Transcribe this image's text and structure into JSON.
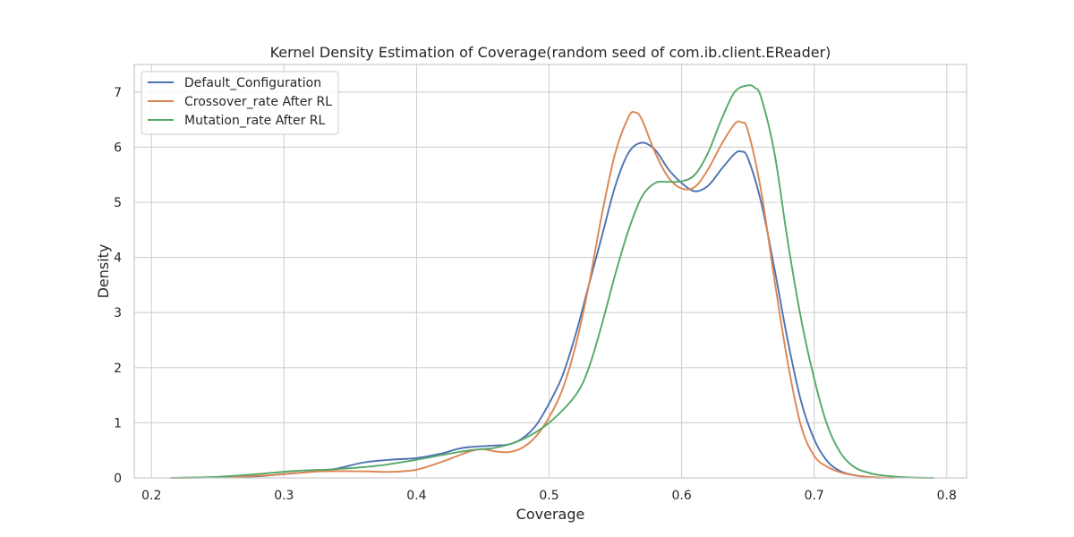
{
  "chart_data": {
    "type": "line",
    "title": "Kernel Density Estimation of Coverage(random seed of com.ib.client.EReader)",
    "xlabel": "Coverage",
    "ylabel": "Density",
    "xlim": [
      0.187,
      0.815
    ],
    "ylim": [
      0,
      7.5
    ],
    "xticks": [
      0.2,
      0.3,
      0.4,
      0.5,
      0.6,
      0.7,
      0.8
    ],
    "xtick_labels": [
      "0.2",
      "0.3",
      "0.4",
      "0.5",
      "0.6",
      "0.7",
      "0.8"
    ],
    "yticks": [
      0,
      1,
      2,
      3,
      4,
      5,
      6,
      7
    ],
    "ytick_labels": [
      "0",
      "1",
      "2",
      "3",
      "4",
      "5",
      "6",
      "7"
    ],
    "grid": true,
    "legend": "top-left",
    "series": [
      {
        "name": "Default_Configuration",
        "color": "#4c72b0",
        "x": [
          0.215,
          0.25,
          0.28,
          0.3,
          0.32,
          0.34,
          0.36,
          0.38,
          0.4,
          0.42,
          0.43,
          0.44,
          0.46,
          0.47,
          0.48,
          0.49,
          0.5,
          0.51,
          0.52,
          0.53,
          0.54,
          0.55,
          0.56,
          0.57,
          0.58,
          0.59,
          0.6,
          0.61,
          0.62,
          0.63,
          0.64,
          0.645,
          0.65,
          0.66,
          0.67,
          0.68,
          0.69,
          0.7,
          0.71,
          0.72,
          0.73,
          0.74,
          0.75
        ],
        "y": [
          0.0,
          0.01,
          0.03,
          0.07,
          0.11,
          0.17,
          0.28,
          0.33,
          0.36,
          0.45,
          0.52,
          0.56,
          0.59,
          0.61,
          0.72,
          0.95,
          1.35,
          1.85,
          2.6,
          3.5,
          4.4,
          5.3,
          5.9,
          6.08,
          5.95,
          5.6,
          5.35,
          5.2,
          5.3,
          5.6,
          5.88,
          5.92,
          5.8,
          5.0,
          3.8,
          2.5,
          1.4,
          0.7,
          0.3,
          0.12,
          0.05,
          0.02,
          0.0
        ]
      },
      {
        "name": "Crossover_rate After RL",
        "color": "#dd8452",
        "x": [
          0.22,
          0.26,
          0.29,
          0.31,
          0.33,
          0.36,
          0.38,
          0.4,
          0.42,
          0.44,
          0.45,
          0.46,
          0.47,
          0.48,
          0.49,
          0.5,
          0.51,
          0.52,
          0.53,
          0.54,
          0.55,
          0.56,
          0.565,
          0.57,
          0.58,
          0.59,
          0.6,
          0.61,
          0.62,
          0.63,
          0.64,
          0.645,
          0.65,
          0.66,
          0.67,
          0.68,
          0.69,
          0.7,
          0.71,
          0.72,
          0.73,
          0.74,
          0.76
        ],
        "y": [
          0.0,
          0.02,
          0.05,
          0.09,
          0.12,
          0.12,
          0.11,
          0.15,
          0.3,
          0.48,
          0.52,
          0.48,
          0.47,
          0.55,
          0.75,
          1.1,
          1.6,
          2.4,
          3.5,
          4.8,
          5.9,
          6.55,
          6.63,
          6.5,
          5.9,
          5.45,
          5.25,
          5.28,
          5.6,
          6.05,
          6.42,
          6.45,
          6.3,
          5.2,
          3.6,
          2.1,
          0.95,
          0.4,
          0.2,
          0.1,
          0.05,
          0.02,
          0.0
        ]
      },
      {
        "name": "Mutation_rate After RL",
        "color": "#55a868",
        "x": [
          0.215,
          0.25,
          0.28,
          0.31,
          0.34,
          0.37,
          0.4,
          0.42,
          0.44,
          0.46,
          0.48,
          0.5,
          0.52,
          0.53,
          0.54,
          0.55,
          0.56,
          0.57,
          0.58,
          0.59,
          0.6,
          0.61,
          0.62,
          0.63,
          0.64,
          0.65,
          0.655,
          0.66,
          0.67,
          0.68,
          0.69,
          0.7,
          0.71,
          0.72,
          0.73,
          0.74,
          0.75,
          0.77,
          0.79
        ],
        "y": [
          0.0,
          0.02,
          0.07,
          0.13,
          0.16,
          0.22,
          0.33,
          0.42,
          0.5,
          0.55,
          0.7,
          1.0,
          1.5,
          2.0,
          2.8,
          3.7,
          4.5,
          5.1,
          5.35,
          5.37,
          5.38,
          5.5,
          5.9,
          6.5,
          7.0,
          7.12,
          7.08,
          6.9,
          5.9,
          4.3,
          2.9,
          1.8,
          0.95,
          0.45,
          0.2,
          0.1,
          0.05,
          0.01,
          0.0
        ]
      }
    ]
  }
}
